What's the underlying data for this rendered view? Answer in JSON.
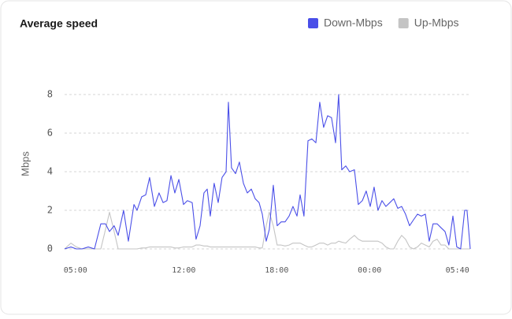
{
  "chart_data": {
    "type": "line",
    "title": "Average speed",
    "y_label": "Mbps",
    "x": [
      4.3,
      4.71,
      5.06,
      5.42,
      5.83,
      6.23,
      6.64,
      6.94,
      7.2,
      7.5,
      7.76,
      8.11,
      8.42,
      8.78,
      8.98,
      9.28,
      9.54,
      9.79,
      10.1,
      10.4,
      10.66,
      10.91,
      11.17,
      11.42,
      11.68,
      11.98,
      12.23,
      12.54,
      12.79,
      13.05,
      13.3,
      13.51,
      13.71,
      13.96,
      14.22,
      14.47,
      14.73,
      14.88,
      15.08,
      15.34,
      15.59,
      15.85,
      16.1,
      16.36,
      16.61,
      16.86,
      17.07,
      17.32,
      17.52,
      17.78,
      18.03,
      18.29,
      18.54,
      18.8,
      19.05,
      19.31,
      19.51,
      19.76,
      20.02,
      20.27,
      20.53,
      20.78,
      21.03,
      21.29,
      21.54,
      21.8,
      22.0,
      22.2,
      22.46,
      22.71,
      23.02,
      23.27,
      23.53,
      23.78,
      24.04,
      24.29,
      24.54,
      24.8,
      25.05,
      25.31,
      25.56,
      25.82,
      26.07,
      26.32,
      26.58,
      26.83,
      27.09,
      27.34,
      27.6,
      27.85,
      28.1,
      28.36,
      28.61,
      28.87,
      29.12,
      29.38,
      29.63,
      29.88,
      30.14,
      30.29,
      30.5
    ],
    "series": [
      {
        "name": "Down-Mbps",
        "color": "#4a4fe8",
        "values": [
          0,
          0.1,
          0,
          0,
          0.1,
          0,
          1.3,
          1.3,
          0.9,
          1.2,
          0.7,
          2.0,
          0.4,
          2.3,
          2.0,
          2.7,
          2.8,
          3.7,
          2.2,
          2.9,
          2.4,
          2.5,
          3.8,
          2.9,
          3.6,
          2.3,
          2.5,
          2.4,
          0.5,
          1.2,
          2.9,
          3.1,
          1.7,
          3.4,
          2.4,
          3.7,
          4.0,
          7.6,
          4.2,
          3.9,
          4.5,
          3.4,
          2.9,
          3.1,
          2.6,
          2.4,
          1.8,
          0.4,
          1.0,
          3.3,
          1.2,
          1.4,
          1.4,
          1.7,
          2.2,
          1.7,
          2.8,
          1.7,
          5.6,
          5.7,
          5.5,
          7.6,
          6.3,
          6.9,
          6.8,
          5.5,
          8.0,
          4.1,
          4.3,
          4.0,
          4.1,
          2.3,
          2.5,
          3.0,
          2.2,
          3.2,
          2.0,
          2.5,
          2.2,
          2.4,
          2.6,
          2.1,
          2.2,
          1.8,
          1.2,
          1.5,
          1.8,
          1.7,
          1.8,
          0.4,
          1.3,
          1.3,
          1.1,
          0.9,
          0.2,
          1.7,
          0.1,
          0,
          2.0,
          2.0,
          0
        ]
      },
      {
        "name": "Up-Mbps",
        "color": "#c4c4c4",
        "values": [
          0,
          0.3,
          0.1,
          0,
          0,
          0,
          0,
          1.0,
          1.9,
          0.9,
          0,
          0,
          0,
          0,
          0,
          0.05,
          0.05,
          0.1,
          0.1,
          0.1,
          0.1,
          0.1,
          0.1,
          0.05,
          0.05,
          0.1,
          0.1,
          0.1,
          0.2,
          0.2,
          0.15,
          0.15,
          0.1,
          0.1,
          0.1,
          0.1,
          0.1,
          0.1,
          0.1,
          0.1,
          0.1,
          0.1,
          0.1,
          0.1,
          0.1,
          0.05,
          0.05,
          1.2,
          1.9,
          1.2,
          0.2,
          0.2,
          0.15,
          0.2,
          0.3,
          0.3,
          0.3,
          0.2,
          0.1,
          0.1,
          0.2,
          0.3,
          0.3,
          0.2,
          0.3,
          0.3,
          0.4,
          0.35,
          0.3,
          0.5,
          0.7,
          0.5,
          0.4,
          0.4,
          0.4,
          0.4,
          0.4,
          0.3,
          0.1,
          0,
          0,
          0.4,
          0.7,
          0.5,
          0.1,
          0,
          0.1,
          0.3,
          0.2,
          0.1,
          0.4,
          0.5,
          0.2,
          0.2,
          0,
          0,
          0,
          0,
          0,
          0,
          0
        ]
      }
    ],
    "xlim": [
      4.3,
      30.5
    ],
    "xticks": [
      {
        "value": 5,
        "label": "05:00"
      },
      {
        "value": 12,
        "label": "12:00"
      },
      {
        "value": 18,
        "label": "18:00"
      },
      {
        "value": 24,
        "label": "00:00"
      },
      {
        "value": 29.67,
        "label": "05:40"
      }
    ],
    "ylim": [
      0,
      8
    ],
    "yticks": [
      0,
      2,
      4,
      6,
      8
    ],
    "grid": true,
    "legend": "top-right"
  }
}
